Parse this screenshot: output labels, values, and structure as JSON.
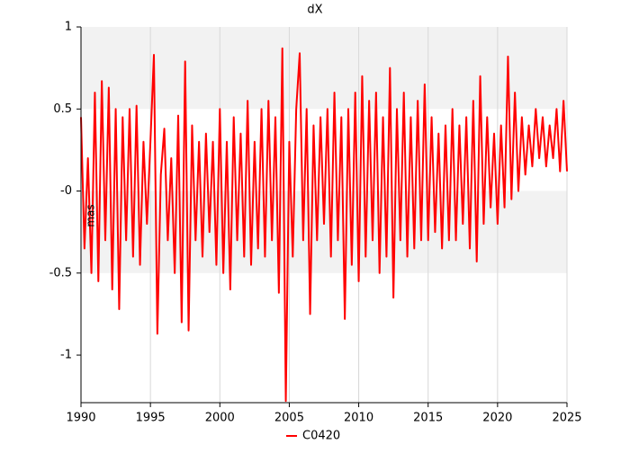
{
  "chart_data": {
    "type": "line",
    "title": "dX",
    "y_label": "mas",
    "x": [
      1990,
      1990.25,
      1990.5,
      1990.75,
      1991,
      1991.25,
      1991.5,
      1991.75,
      1992,
      1992.25,
      1992.5,
      1992.75,
      1993,
      1993.25,
      1993.5,
      1993.75,
      1994,
      1994.25,
      1994.5,
      1994.75,
      1995,
      1995.25,
      1995.5,
      1995.75,
      1996,
      1996.25,
      1996.5,
      1996.75,
      1997,
      1997.25,
      1997.5,
      1997.75,
      1998,
      1998.25,
      1998.5,
      1998.75,
      1999,
      1999.25,
      1999.5,
      1999.75,
      2000,
      2000.25,
      2000.5,
      2000.75,
      2001,
      2001.25,
      2001.5,
      2001.75,
      2002,
      2002.25,
      2002.5,
      2002.75,
      2003,
      2003.25,
      2003.5,
      2003.75,
      2004,
      2004.25,
      2004.5,
      2004.75,
      2005,
      2005.25,
      2005.5,
      2005.75,
      2006,
      2006.25,
      2006.5,
      2006.75,
      2007,
      2007.25,
      2007.5,
      2007.75,
      2008,
      2008.25,
      2008.5,
      2008.75,
      2009,
      2009.25,
      2009.5,
      2009.75,
      2010,
      2010.25,
      2010.5,
      2010.75,
      2011,
      2011.25,
      2011.5,
      2011.75,
      2012,
      2012.25,
      2012.5,
      2012.75,
      2013,
      2013.25,
      2013.5,
      2013.75,
      2014,
      2014.25,
      2014.5,
      2014.75,
      2015,
      2015.25,
      2015.5,
      2015.75,
      2016,
      2016.25,
      2016.5,
      2016.75,
      2017,
      2017.25,
      2017.5,
      2017.75,
      2018,
      2018.25,
      2018.5,
      2018.75,
      2019,
      2019.25,
      2019.5,
      2019.75,
      2020,
      2020.25,
      2020.5,
      2020.75,
      2021,
      2021.25,
      2021.5,
      2021.75,
      2022,
      2022.25,
      2022.5,
      2022.75,
      2023,
      2023.25,
      2023.5,
      2023.75,
      2024,
      2024.25,
      2024.5,
      2024.75,
      2025
    ],
    "series": [
      {
        "name": "C0420",
        "color": "#ff0000",
        "values": [
          0.45,
          -0.35,
          0.2,
          -0.5,
          0.6,
          -0.55,
          0.67,
          -0.3,
          0.63,
          -0.6,
          0.5,
          -0.72,
          0.45,
          -0.3,
          0.5,
          -0.4,
          0.52,
          -0.45,
          0.3,
          -0.2,
          0.3,
          0.83,
          -0.87,
          0.1,
          0.38,
          -0.3,
          0.2,
          -0.5,
          0.46,
          -0.8,
          0.79,
          -0.85,
          0.4,
          -0.3,
          0.3,
          -0.4,
          0.35,
          -0.25,
          0.3,
          -0.45,
          0.5,
          -0.5,
          0.3,
          -0.6,
          0.45,
          -0.3,
          0.35,
          -0.4,
          0.55,
          -0.45,
          0.3,
          -0.35,
          0.5,
          -0.4,
          0.55,
          -0.3,
          0.45,
          -0.62,
          0.87,
          -1.28,
          0.3,
          -0.4,
          0.5,
          0.84,
          -0.3,
          0.5,
          -0.75,
          0.4,
          -0.3,
          0.45,
          -0.2,
          0.5,
          -0.4,
          0.6,
          -0.3,
          0.45,
          -0.78,
          0.5,
          -0.45,
          0.6,
          -0.55,
          0.7,
          -0.4,
          0.55,
          -0.3,
          0.6,
          -0.5,
          0.45,
          -0.4,
          0.75,
          -0.65,
          0.5,
          -0.3,
          0.6,
          -0.4,
          0.45,
          -0.35,
          0.55,
          -0.3,
          0.65,
          -0.3,
          0.45,
          -0.25,
          0.35,
          -0.35,
          0.4,
          -0.3,
          0.5,
          -0.3,
          0.4,
          -0.2,
          0.45,
          -0.35,
          0.55,
          -0.43,
          0.7,
          -0.2,
          0.45,
          -0.1,
          0.35,
          -0.2,
          0.4,
          -0.1,
          0.82,
          -0.05,
          0.6,
          0,
          0.45,
          0.1,
          0.4,
          0.15,
          0.5,
          0.2,
          0.45,
          0.15,
          0.4,
          0.2,
          0.5,
          0.12,
          0.55,
          0.12
        ]
      }
    ],
    "xlim": [
      1990,
      2025
    ],
    "xticks": [
      1990,
      1995,
      2000,
      2005,
      2010,
      2015,
      2020,
      2025
    ],
    "ylim": [
      -1.29,
      1
    ],
    "yticks": [
      -1,
      -0.5,
      {
        "value": 0,
        "label": "-0"
      },
      0.5,
      1
    ],
    "grid": true,
    "legend": "bottom"
  }
}
